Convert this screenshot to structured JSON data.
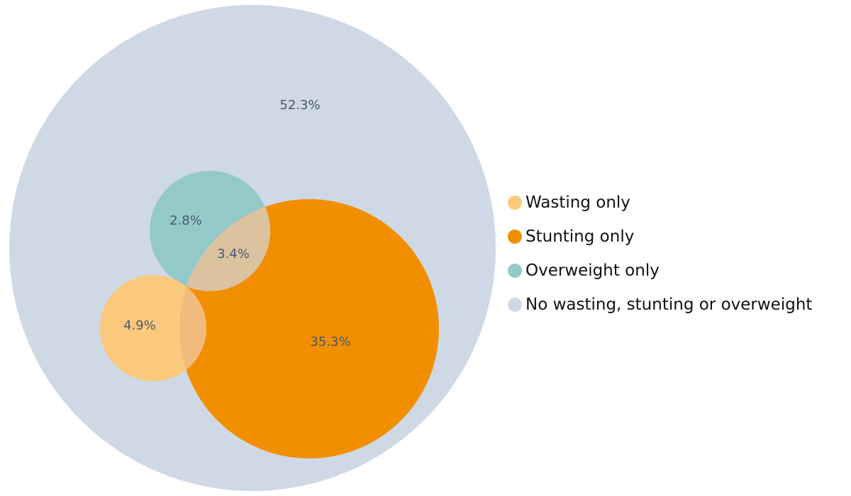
{
  "chart_data": {
    "type": "venn",
    "title": "",
    "sets": [
      {
        "name": "No wasting, stunting or overweight",
        "value": 52.3,
        "color": "#cfd9e5"
      },
      {
        "name": "Stunting only",
        "value": 35.3,
        "color": "#f28f00"
      },
      {
        "name": "Overweight only",
        "value": 2.8,
        "color": "#94c9c9"
      },
      {
        "name": "Wasting only",
        "value": 4.9,
        "color": "#fbc97d"
      }
    ],
    "overlaps": [
      {
        "sets": [
          "Overweight only",
          "Stunting only"
        ],
        "value": 3.4,
        "color": "#dcc3a0"
      },
      {
        "sets": [
          "Wasting only",
          "Stunting only"
        ],
        "value": null,
        "color": "#f2bb7e"
      }
    ],
    "legend": {
      "position": "right",
      "items": [
        {
          "label": "Wasting only",
          "color": "#fbc97d"
        },
        {
          "label": "Stunting only",
          "color": "#f28f00"
        },
        {
          "label": "Overweight only",
          "color": "#94c9c9"
        },
        {
          "label": "No wasting, stunting or overweight",
          "color": "#cfd9e5"
        }
      ]
    }
  }
}
